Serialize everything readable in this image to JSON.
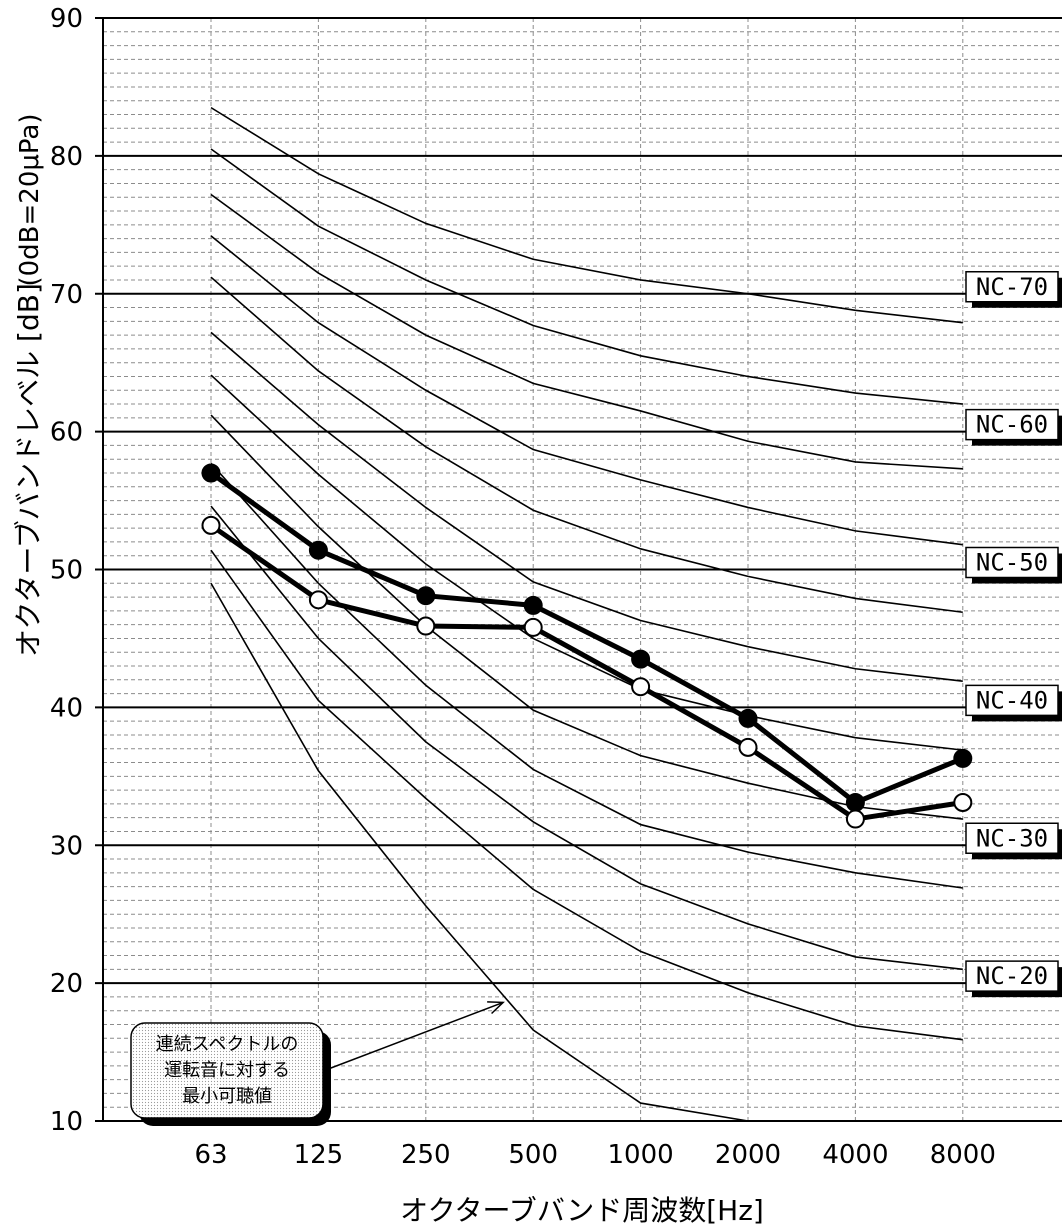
{
  "chart_data": {
    "type": "line",
    "xlabel": "オクターブバンド周波数[Hz]",
    "ylabel": "オクターブバンドレベル [dB]",
    "ylabel_note": "(0dB=20μPa)",
    "categories": [
      "63",
      "125",
      "250",
      "500",
      "1000",
      "2000",
      "4000",
      "8000"
    ],
    "ylim": [
      10,
      90
    ],
    "yticks": [
      "10",
      "20",
      "30",
      "40",
      "50",
      "60",
      "70",
      "80",
      "90"
    ],
    "grid": {
      "major_step": 10,
      "minor_step": 1
    },
    "nc_curves": [
      {
        "label": "NC-70",
        "values": [
          83.5,
          78.7,
          75.1,
          72.5,
          71.0,
          70.0,
          68.8,
          67.9
        ]
      },
      {
        "label": "",
        "values": [
          80.5,
          74.9,
          71.0,
          67.7,
          65.5,
          64.0,
          62.8,
          62.0
        ]
      },
      {
        "label": "",
        "values": [
          77.2,
          71.5,
          67.0,
          63.5,
          61.5,
          59.3,
          57.8,
          57.3
        ]
      },
      {
        "label": "NC-60",
        "values": [
          74.2,
          67.9,
          63.0,
          58.7,
          56.5,
          54.5,
          52.8,
          51.8
        ]
      },
      {
        "label": "",
        "values": [
          71.2,
          64.4,
          58.9,
          54.3,
          51.5,
          49.5,
          47.9,
          46.9
        ]
      },
      {
        "label": "NC-50",
        "values": [
          67.2,
          60.5,
          54.5,
          49.1,
          46.3,
          44.4,
          42.8,
          41.9
        ]
      },
      {
        "label": "",
        "values": [
          64.1,
          56.9,
          50.4,
          45.0,
          41.3,
          39.4,
          37.8,
          36.9
        ]
      },
      {
        "label": "NC-40",
        "values": [
          61.2,
          53.1,
          45.9,
          39.8,
          36.5,
          34.5,
          32.8,
          31.9
        ]
      },
      {
        "label": "",
        "values": [
          57.7,
          49.0,
          41.6,
          35.5,
          31.5,
          29.5,
          28.0,
          26.9
        ]
      },
      {
        "label": "NC-30",
        "values": [
          54.6,
          45.0,
          37.5,
          31.7,
          27.2,
          24.3,
          21.9,
          21.0
        ]
      },
      {
        "label": "NC-20",
        "values": [
          51.4,
          40.5,
          33.4,
          26.8,
          22.3,
          19.3,
          16.9,
          15.9
        ]
      }
    ],
    "nc_label_positions": [
      70,
      60,
      50,
      40,
      30,
      20
    ],
    "threshold_curve": {
      "x_index": [
        0,
        1,
        2,
        3,
        4,
        5
      ],
      "values": [
        49.0,
        35.4,
        25.6,
        16.6,
        11.3,
        10.0
      ]
    },
    "series": [
      {
        "marker": "filled",
        "values": [
          57.0,
          51.4,
          48.1,
          47.4,
          43.5,
          39.2,
          33.1,
          36.3
        ]
      },
      {
        "marker": "open",
        "values": [
          53.2,
          47.8,
          45.9,
          45.8,
          41.5,
          37.1,
          31.9,
          33.1
        ]
      }
    ],
    "annotation": {
      "lines": [
        "連続スペクトルの",
        "運転音に対する",
        "最小可聴値"
      ],
      "arrow_target": {
        "x_index": 2.72,
        "value": 18.6
      }
    }
  }
}
